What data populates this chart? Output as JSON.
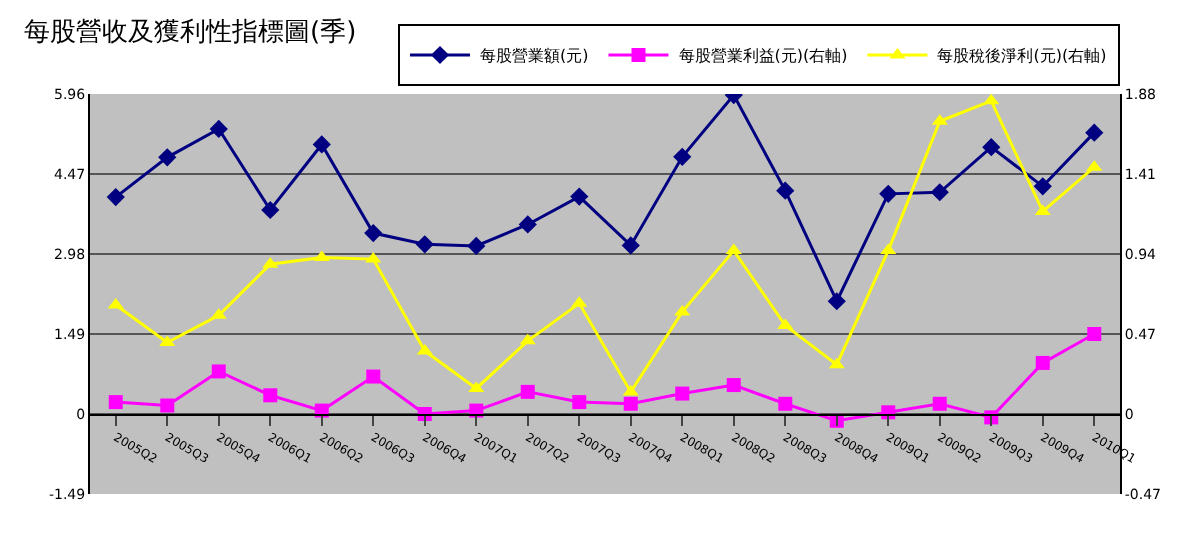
{
  "chart_data": {
    "type": "line",
    "title": "每股營收及獲利性指標圖(季)",
    "categories": [
      "2005Q2",
      "2005Q3",
      "2005Q4",
      "2006Q1",
      "2006Q2",
      "2006Q3",
      "2006Q4",
      "2007Q1",
      "2007Q2",
      "2007Q3",
      "2007Q4",
      "2008Q1",
      "2008Q2",
      "2008Q3",
      "2008Q4",
      "2009Q1",
      "2009Q2",
      "2009Q3",
      "2009Q4",
      "2010Q1"
    ],
    "series": [
      {
        "name": "每股營業額(元)",
        "color": "#000080",
        "marker": "diamond",
        "values": [
          4.04,
          4.78,
          5.31,
          3.8,
          5.02,
          3.37,
          3.16,
          3.13,
          3.53,
          4.05,
          3.14,
          4.79,
          5.94,
          4.16,
          2.1,
          4.1,
          4.13,
          4.97,
          4.24,
          5.24
        ]
      },
      {
        "name": "每股營業利益(元)(右軸)",
        "color": "#ff00ff",
        "marker": "square",
        "axis": "y2",
        "values": [
          0.07,
          0.05,
          0.25,
          0.11,
          0.02,
          0.22,
          0.0,
          0.02,
          0.13,
          0.07,
          0.06,
          0.12,
          0.17,
          0.06,
          -0.04,
          0.01,
          0.06,
          -0.02,
          0.3,
          0.47
        ]
      },
      {
        "name": "每股稅後淨利(元)(右軸)",
        "color": "#ffff00",
        "marker": "triangle",
        "axis": "y2",
        "values": [
          0.64,
          0.42,
          0.58,
          0.88,
          0.92,
          0.91,
          0.37,
          0.15,
          0.43,
          0.65,
          0.13,
          0.6,
          0.96,
          0.52,
          0.29,
          0.96,
          1.72,
          1.84,
          1.19,
          1.45
        ]
      }
    ],
    "ylim": [
      -1.49,
      5.96
    ],
    "yticks": [
      -1.49,
      0,
      1.49,
      2.98,
      4.47,
      5.96
    ],
    "y2lim": [
      -0.47,
      1.88
    ],
    "y2ticks": [
      -0.47,
      0,
      0.47,
      0.94,
      1.41,
      1.88
    ],
    "grid": "y",
    "legend": "top right"
  }
}
